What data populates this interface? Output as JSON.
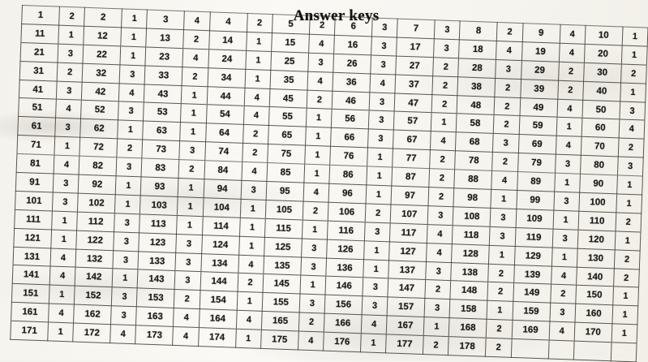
{
  "title": "Answer keys",
  "colors": {
    "paper": "#f4f2ec",
    "ink": "#1b1a18",
    "grid_line": "#37332c"
  },
  "answer_key": {
    "pairs_per_row": 10,
    "rows": [
      [
        [
          "1",
          "2"
        ],
        [
          "2",
          "1"
        ],
        [
          "3",
          "4"
        ],
        [
          "4",
          "2"
        ],
        [
          "5",
          "2"
        ],
        [
          "6",
          "3"
        ],
        [
          "7",
          "3"
        ],
        [
          "8",
          "2"
        ],
        [
          "9",
          "4"
        ],
        [
          "10",
          "1"
        ]
      ],
      [
        [
          "11",
          "1"
        ],
        [
          "12",
          "1"
        ],
        [
          "13",
          "2"
        ],
        [
          "14",
          "1"
        ],
        [
          "15",
          "4"
        ],
        [
          "16",
          "3"
        ],
        [
          "17",
          "3"
        ],
        [
          "18",
          "4"
        ],
        [
          "19",
          "4"
        ],
        [
          "20",
          "1"
        ]
      ],
      [
        [
          "21",
          "3"
        ],
        [
          "22",
          "1"
        ],
        [
          "23",
          "4"
        ],
        [
          "24",
          "1"
        ],
        [
          "25",
          "3"
        ],
        [
          "26",
          "3"
        ],
        [
          "27",
          "2"
        ],
        [
          "28",
          "3"
        ],
        [
          "29",
          "2"
        ],
        [
          "30",
          "2"
        ]
      ],
      [
        [
          "31",
          "2"
        ],
        [
          "32",
          "3"
        ],
        [
          "33",
          "2"
        ],
        [
          "34",
          "1"
        ],
        [
          "35",
          "4"
        ],
        [
          "36",
          "4"
        ],
        [
          "37",
          "2"
        ],
        [
          "38",
          "2"
        ],
        [
          "39",
          "2"
        ],
        [
          "40",
          "1"
        ]
      ],
      [
        [
          "41",
          "3"
        ],
        [
          "42",
          "4"
        ],
        [
          "43",
          "1"
        ],
        [
          "44",
          "4"
        ],
        [
          "45",
          "2"
        ],
        [
          "46",
          "3"
        ],
        [
          "47",
          "2"
        ],
        [
          "48",
          "2"
        ],
        [
          "49",
          "4"
        ],
        [
          "50",
          "3"
        ]
      ],
      [
        [
          "51",
          "4"
        ],
        [
          "52",
          "3"
        ],
        [
          "53",
          "1"
        ],
        [
          "54",
          "4"
        ],
        [
          "55",
          "1"
        ],
        [
          "56",
          "3"
        ],
        [
          "57",
          "1"
        ],
        [
          "58",
          "2"
        ],
        [
          "59",
          "1"
        ],
        [
          "60",
          "4"
        ]
      ],
      [
        [
          "61",
          "3"
        ],
        [
          "62",
          "1"
        ],
        [
          "63",
          "1"
        ],
        [
          "64",
          "2"
        ],
        [
          "65",
          "1"
        ],
        [
          "66",
          "3"
        ],
        [
          "67",
          "4"
        ],
        [
          "68",
          "3"
        ],
        [
          "69",
          "4"
        ],
        [
          "70",
          "2"
        ]
      ],
      [
        [
          "71",
          "1"
        ],
        [
          "72",
          "2"
        ],
        [
          "73",
          "3"
        ],
        [
          "74",
          "2"
        ],
        [
          "75",
          "1"
        ],
        [
          "76",
          "1"
        ],
        [
          "77",
          "2"
        ],
        [
          "78",
          "2"
        ],
        [
          "79",
          "3"
        ],
        [
          "80",
          "3"
        ]
      ],
      [
        [
          "81",
          "4"
        ],
        [
          "82",
          "3"
        ],
        [
          "83",
          "2"
        ],
        [
          "84",
          "4"
        ],
        [
          "85",
          "1"
        ],
        [
          "86",
          "1"
        ],
        [
          "87",
          "2"
        ],
        [
          "88",
          "4"
        ],
        [
          "89",
          "1"
        ],
        [
          "90",
          "1"
        ]
      ],
      [
        [
          "91",
          "3"
        ],
        [
          "92",
          "1"
        ],
        [
          "93",
          "1"
        ],
        [
          "94",
          "3"
        ],
        [
          "95",
          "4"
        ],
        [
          "96",
          "1"
        ],
        [
          "97",
          "2"
        ],
        [
          "98",
          "1"
        ],
        [
          "99",
          "3"
        ],
        [
          "100",
          "1"
        ]
      ],
      [
        [
          "101",
          "3"
        ],
        [
          "102",
          "1"
        ],
        [
          "103",
          "1"
        ],
        [
          "104",
          "1"
        ],
        [
          "105",
          "2"
        ],
        [
          "106",
          "2"
        ],
        [
          "107",
          "3"
        ],
        [
          "108",
          "3"
        ],
        [
          "109",
          "1"
        ],
        [
          "110",
          "2"
        ]
      ],
      [
        [
          "111",
          "1"
        ],
        [
          "112",
          "3"
        ],
        [
          "113",
          "1"
        ],
        [
          "114",
          "1"
        ],
        [
          "115",
          "1"
        ],
        [
          "116",
          "3"
        ],
        [
          "117",
          "4"
        ],
        [
          "118",
          "3"
        ],
        [
          "119",
          "3"
        ],
        [
          "120",
          "1"
        ]
      ],
      [
        [
          "121",
          "1"
        ],
        [
          "122",
          "3"
        ],
        [
          "123",
          "3"
        ],
        [
          "124",
          "1"
        ],
        [
          "125",
          "3"
        ],
        [
          "126",
          "1"
        ],
        [
          "127",
          "4"
        ],
        [
          "128",
          "1"
        ],
        [
          "129",
          "1"
        ],
        [
          "130",
          "2"
        ]
      ],
      [
        [
          "131",
          "4"
        ],
        [
          "132",
          "3"
        ],
        [
          "133",
          "3"
        ],
        [
          "134",
          "4"
        ],
        [
          "135",
          "3"
        ],
        [
          "136",
          "1"
        ],
        [
          "137",
          "3"
        ],
        [
          "138",
          "2"
        ],
        [
          "139",
          "4"
        ],
        [
          "140",
          "2"
        ]
      ],
      [
        [
          "141",
          "4"
        ],
        [
          "142",
          "1"
        ],
        [
          "143",
          "3"
        ],
        [
          "144",
          "2"
        ],
        [
          "145",
          "1"
        ],
        [
          "146",
          "3"
        ],
        [
          "147",
          "2"
        ],
        [
          "148",
          "2"
        ],
        [
          "149",
          "2"
        ],
        [
          "150",
          "1"
        ]
      ],
      [
        [
          "151",
          "1"
        ],
        [
          "152",
          "3"
        ],
        [
          "153",
          "2"
        ],
        [
          "154",
          "1"
        ],
        [
          "155",
          "3"
        ],
        [
          "156",
          "3"
        ],
        [
          "157",
          "3"
        ],
        [
          "158",
          "1"
        ],
        [
          "159",
          "3"
        ],
        [
          "160",
          "1"
        ]
      ],
      [
        [
          "161",
          "4"
        ],
        [
          "162",
          "3"
        ],
        [
          "163",
          "4"
        ],
        [
          "164",
          "4"
        ],
        [
          "165",
          "2"
        ],
        [
          "166",
          "4"
        ],
        [
          "167",
          "1"
        ],
        [
          "168",
          "2"
        ],
        [
          "169",
          "4"
        ],
        [
          "170",
          "1"
        ]
      ],
      [
        [
          "171",
          "1"
        ],
        [
          "172",
          "4"
        ],
        [
          "173",
          "4"
        ],
        [
          "174",
          "1"
        ],
        [
          "175",
          "4"
        ],
        [
          "176",
          "1"
        ],
        [
          "177",
          "2"
        ],
        [
          "178",
          "2"
        ],
        [
          "",
          ""
        ],
        [
          "",
          ""
        ]
      ]
    ]
  }
}
